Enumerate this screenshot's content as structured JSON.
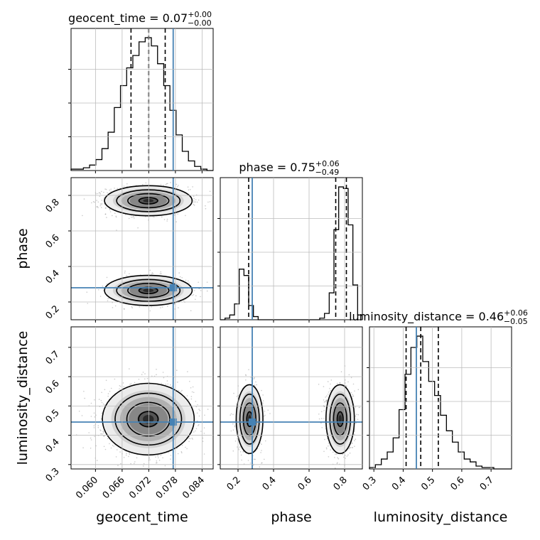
{
  "chart_data": {
    "type": "corner",
    "parameters": [
      {
        "name": "geocent_time",
        "range": [
          0.0545,
          0.0865
        ],
        "truth": 0.0775,
        "ticks": [
          "0.060",
          "0.066",
          "0.072",
          "0.078",
          "0.084"
        ],
        "tick_values": [
          0.06,
          0.066,
          0.072,
          0.078,
          0.084
        ],
        "quantiles": [
          0.068,
          0.072,
          0.0757
        ],
        "title": {
          "main": "geocent_time = 0.07",
          "sup": "+0.00",
          "sub": "−0.00"
        },
        "hist": [
          1,
          1,
          2,
          4,
          8,
          16,
          28,
          46,
          62,
          75,
          84,
          94,
          97,
          91,
          78,
          62,
          44,
          26,
          14,
          7,
          3,
          1,
          0
        ]
      },
      {
        "name": "phase",
        "range": [
          0.1,
          0.9
        ],
        "truth": 0.28,
        "ticks": [
          "0.2",
          "0.4",
          "0.6",
          "0.8"
        ],
        "tick_values": [
          0.2,
          0.4,
          0.6,
          0.8
        ],
        "quantiles": [
          0.26,
          0.75,
          0.81
        ],
        "title": {
          "main": "phase = 0.75",
          "sup": "+0.06",
          "sub": "−0.49"
        },
        "hist": [
          0,
          1,
          3,
          10,
          32,
          28,
          9,
          2,
          0,
          0,
          0,
          0,
          0,
          0,
          0,
          0,
          0,
          0,
          0,
          0,
          0,
          1,
          4,
          17,
          57,
          84,
          83,
          60,
          22,
          3
        ]
      },
      {
        "name": "luminosity_distance",
        "range": [
          0.285,
          0.77
        ],
        "truth": 0.445,
        "ticks": [
          "0.3",
          "0.4",
          "0.5",
          "0.6",
          "0.7"
        ],
        "tick_values": [
          0.3,
          0.4,
          0.5,
          0.6,
          0.7
        ],
        "quantiles": [
          0.41,
          0.46,
          0.52
        ],
        "title": {
          "main": "luminosity_distance = 0.46",
          "sup": "+0.06",
          "sub": "−0.05"
        },
        "hist": [
          1,
          3,
          7,
          12,
          22,
          42,
          67,
          86,
          94,
          76,
          62,
          52,
          38,
          27,
          19,
          12,
          7,
          5,
          2,
          1,
          1,
          0,
          0,
          0
        ]
      }
    ],
    "blobs": [
      {
        "x": 0,
        "y": 1,
        "cx": 0.0719,
        "cy": 0.77,
        "sx": 0.0042,
        "sy": 0.036,
        "n": 1300
      },
      {
        "x": 0,
        "y": 1,
        "cx": 0.0719,
        "cy": 0.265,
        "sx": 0.0042,
        "sy": 0.036,
        "n": 750
      },
      {
        "x": 0,
        "y": 2,
        "cx": 0.0719,
        "cy": 0.455,
        "sx": 0.0044,
        "sy": 0.052,
        "n": 1800
      },
      {
        "x": 1,
        "y": 2,
        "cx": 0.265,
        "cy": 0.455,
        "sx": 0.032,
        "sy": 0.05,
        "n": 700
      },
      {
        "x": 1,
        "y": 2,
        "cx": 0.775,
        "cy": 0.455,
        "sx": 0.034,
        "sy": 0.05,
        "n": 1200
      }
    ],
    "colors": {
      "truth": "#4682b4",
      "line": "#000000",
      "grid": "#bbbbbb",
      "points": "#8a8a8a"
    },
    "grid": true
  }
}
